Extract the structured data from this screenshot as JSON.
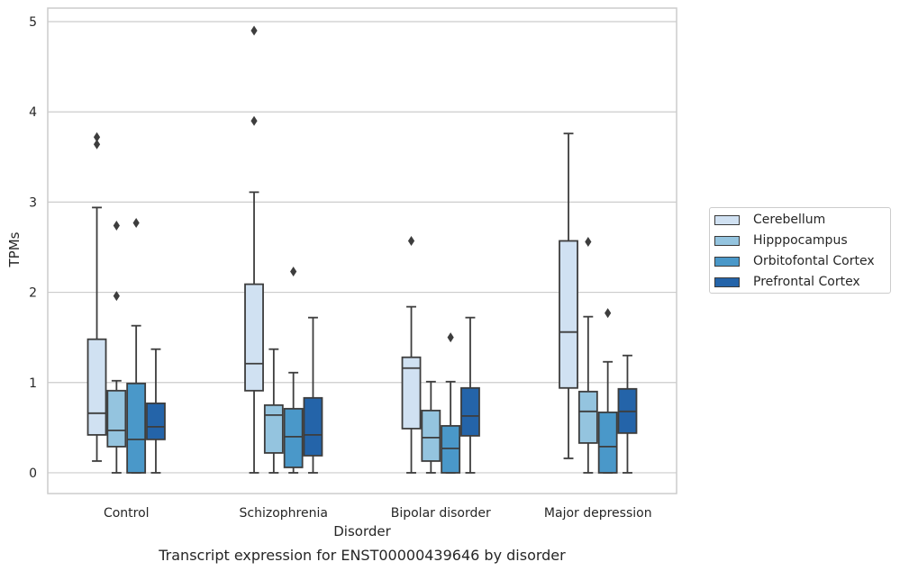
{
  "chart_data": {
    "type": "box",
    "caption": "Transcript expression for ENST00000439646 by disorder",
    "xlabel": "Disorder",
    "ylabel": "TPMs",
    "ylim": [
      -0.23,
      5.15
    ],
    "yticks": [
      "0",
      "1",
      "2",
      "3",
      "4",
      "5"
    ],
    "grid": "horizontal",
    "legend_position": "right",
    "categories": [
      "Control",
      "Schizophrenia",
      "Bipolar disorder",
      "Major depression"
    ],
    "series": [
      {
        "name": "Cerebellum",
        "color": "#d0e1f2",
        "boxes": [
          {
            "whislo": 0.13,
            "q1": 0.42,
            "med": 0.66,
            "q3": 1.48,
            "whishi": 2.94,
            "fliers": [
              3.64,
              3.72
            ]
          },
          {
            "whislo": 0.0,
            "q1": 0.91,
            "med": 1.21,
            "q3": 2.09,
            "whishi": 3.11,
            "fliers": [
              3.9,
              4.9
            ]
          },
          {
            "whislo": 0.0,
            "q1": 0.49,
            "med": 1.16,
            "q3": 1.28,
            "whishi": 1.84,
            "fliers": [
              2.57
            ]
          },
          {
            "whislo": 0.16,
            "q1": 0.94,
            "med": 1.56,
            "q3": 2.57,
            "whishi": 3.76,
            "fliers": []
          }
        ]
      },
      {
        "name": "Hipppocampus",
        "color": "#94c4df",
        "boxes": [
          {
            "whislo": 0.0,
            "q1": 0.29,
            "med": 0.47,
            "q3": 0.91,
            "whishi": 1.02,
            "fliers": [
              1.96,
              2.74
            ]
          },
          {
            "whislo": 0.0,
            "q1": 0.22,
            "med": 0.64,
            "q3": 0.75,
            "whishi": 1.37,
            "fliers": []
          },
          {
            "whislo": 0.0,
            "q1": 0.13,
            "med": 0.39,
            "q3": 0.69,
            "whishi": 1.01,
            "fliers": []
          },
          {
            "whislo": 0.0,
            "q1": 0.33,
            "med": 0.68,
            "q3": 0.9,
            "whishi": 1.73,
            "fliers": [
              2.56
            ]
          }
        ]
      },
      {
        "name": "Orbitofontal Cortex",
        "color": "#4a98c9",
        "boxes": [
          {
            "whislo": 0.0,
            "q1": 0.0,
            "med": 0.37,
            "q3": 0.99,
            "whishi": 1.63,
            "fliers": [
              2.77
            ]
          },
          {
            "whislo": 0.0,
            "q1": 0.06,
            "med": 0.4,
            "q3": 0.71,
            "whishi": 1.11,
            "fliers": [
              2.23
            ]
          },
          {
            "whislo": 0.0,
            "q1": 0.0,
            "med": 0.27,
            "q3": 0.52,
            "whishi": 1.01,
            "fliers": [
              1.5
            ]
          },
          {
            "whislo": 0.0,
            "q1": 0.0,
            "med": 0.29,
            "q3": 0.67,
            "whishi": 1.23,
            "fliers": [
              1.77
            ]
          }
        ]
      },
      {
        "name": "Prefrontal Cortex",
        "color": "#2464a9",
        "boxes": [
          {
            "whislo": 0.0,
            "q1": 0.37,
            "med": 0.51,
            "q3": 0.77,
            "whishi": 1.37,
            "fliers": []
          },
          {
            "whislo": 0.0,
            "q1": 0.19,
            "med": 0.42,
            "q3": 0.83,
            "whishi": 1.72,
            "fliers": []
          },
          {
            "whislo": 0.0,
            "q1": 0.41,
            "med": 0.63,
            "q3": 0.94,
            "whishi": 1.72,
            "fliers": []
          },
          {
            "whislo": 0.0,
            "q1": 0.44,
            "med": 0.68,
            "q3": 0.93,
            "whishi": 1.3,
            "fliers": []
          }
        ]
      }
    ]
  }
}
